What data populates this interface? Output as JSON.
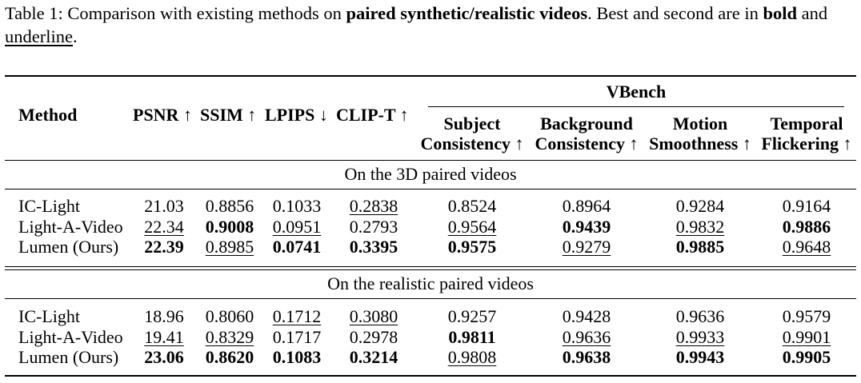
{
  "caption": {
    "prefix": "Table 1: Comparison with existing methods on ",
    "bold_phrase": "paired synthetic/realistic videos",
    "middle": ". Best and second are in ",
    "bold_word": "bold",
    "and_word": " and ",
    "underline_word": "underline",
    "suffix": "."
  },
  "header": {
    "method": "Method",
    "psnr": "PSNR",
    "psnr_arrow": "↑",
    "ssim": "SSIM",
    "ssim_arrow": "↑",
    "lpips": "LPIPS",
    "lpips_arrow": "↓",
    "clipt": "CLIP-T",
    "clipt_arrow": "↑",
    "vbench": "VBench",
    "subject_l1": "Subject",
    "subject_l2": "Consistency",
    "background_l1": "Background",
    "background_l2": "Consistency",
    "motion_l1": "Motion",
    "motion_l2": "Smoothness",
    "temporal_l1": "Temporal",
    "temporal_l2": "Flickering",
    "up_arrow": "↑"
  },
  "sections": [
    {
      "title": "On the 3D paired videos",
      "rows": [
        {
          "method": "IC-Light",
          "values": [
            "21.03",
            "0.8856",
            "0.1033",
            "0.2838",
            "0.8524",
            "0.8964",
            "0.9284",
            "0.9164"
          ],
          "styles": [
            "",
            "",
            "",
            "u",
            "",
            "",
            "",
            ""
          ]
        },
        {
          "method": "Light-A-Video",
          "values": [
            "22.34",
            "0.9008",
            "0.0951",
            "0.2793",
            "0.9564",
            "0.9439",
            "0.9832",
            "0.9886"
          ],
          "styles": [
            "u",
            "b",
            "u",
            "",
            "u",
            "b",
            "u",
            "b"
          ]
        },
        {
          "method": "Lumen (Ours)",
          "values": [
            "22.39",
            "0.8985",
            "0.0741",
            "0.3395",
            "0.9575",
            "0.9279",
            "0.9885",
            "0.9648"
          ],
          "styles": [
            "b",
            "u",
            "b",
            "b",
            "b",
            "u",
            "b",
            "u"
          ]
        }
      ]
    },
    {
      "title": "On the realistic paired videos",
      "rows": [
        {
          "method": "IC-Light",
          "values": [
            "18.96",
            "0.8060",
            "0.1712",
            "0.3080",
            "0.9257",
            "0.9428",
            "0.9636",
            "0.9579"
          ],
          "styles": [
            "",
            "",
            "u",
            "u",
            "",
            "",
            "",
            ""
          ]
        },
        {
          "method": "Light-A-Video",
          "values": [
            "19.41",
            "0.8329",
            "0.1717",
            "0.2978",
            "0.9811",
            "0.9636",
            "0.9933",
            "0.9901"
          ],
          "styles": [
            "u",
            "u",
            "",
            "",
            "b",
            "u",
            "u",
            "u"
          ]
        },
        {
          "method": "Lumen (Ours)",
          "values": [
            "23.06",
            "0.8620",
            "0.1083",
            "0.3214",
            "0.9808",
            "0.9638",
            "0.9943",
            "0.9905"
          ],
          "styles": [
            "b",
            "b",
            "b",
            "b",
            "u",
            "b",
            "b",
            "b"
          ]
        }
      ]
    }
  ]
}
